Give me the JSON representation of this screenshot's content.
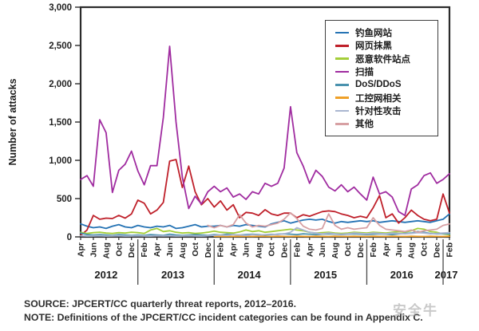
{
  "chart_data": {
    "type": "line",
    "title": "",
    "ylabel": "Number of attacks",
    "ylim": [
      0,
      3000
    ],
    "ytick_step": 500,
    "ytick_labels": [
      "0",
      "500",
      "1,000",
      "1,500",
      "2,000",
      "2,500",
      "3,000"
    ],
    "x_start_month": "Apr 2012",
    "x_end_month": "Feb 2017",
    "xtick_labels": [
      "Apr",
      "Jun",
      "Aug",
      "Oct",
      "Dec",
      "Feb",
      "Apr",
      "Jun",
      "Aug",
      "Oct",
      "Dec",
      "Feb",
      "Apr",
      "Jun",
      "Aug",
      "Oct",
      "Dec",
      "Feb",
      "Apr",
      "Jun",
      "Aug",
      "Oct",
      "Dec",
      "Feb",
      "Apr",
      "Jun",
      "Aug",
      "Oct",
      "Dec",
      "Feb"
    ],
    "years": [
      {
        "label": "2012",
        "start": 0,
        "end": 8
      },
      {
        "label": "2013",
        "start": 9,
        "end": 20
      },
      {
        "label": "2014",
        "start": 21,
        "end": 32
      },
      {
        "label": "2015",
        "start": 33,
        "end": 44
      },
      {
        "label": "2016",
        "start": 45,
        "end": 56
      },
      {
        "label": "2017",
        "start": 57,
        "end": 58
      }
    ],
    "grid": false,
    "legend_position": "upper right",
    "series": [
      {
        "name": "钓鱼网站",
        "color": "#2573b4",
        "values": [
          170,
          140,
          120,
          130,
          110,
          140,
          160,
          130,
          120,
          150,
          130,
          120,
          140,
          130,
          150,
          110,
          120,
          140,
          160,
          130,
          140,
          140,
          150,
          130,
          150,
          140,
          160,
          150,
          140,
          130,
          170,
          190,
          210,
          180,
          200,
          220,
          230,
          220,
          230,
          200,
          180,
          200,
          190,
          200,
          210,
          200,
          210,
          190,
          200,
          210,
          200,
          190,
          200,
          210,
          200,
          190,
          210,
          230,
          300
        ]
      },
      {
        "name": "网页抹黑",
        "color": "#bf202a",
        "values": [
          20,
          90,
          280,
          230,
          245,
          240,
          280,
          245,
          300,
          480,
          440,
          300,
          350,
          450,
          990,
          1010,
          645,
          925,
          590,
          420,
          500,
          390,
          470,
          350,
          420,
          250,
          320,
          310,
          280,
          355,
          300,
          280,
          310,
          310,
          250,
          290,
          270,
          300,
          330,
          340,
          330,
          300,
          280,
          250,
          270,
          250,
          380,
          540,
          250,
          300,
          180,
          250,
          350,
          280,
          230,
          210,
          230,
          560,
          310
        ]
      },
      {
        "name": "恶意软件站点",
        "color": "#a4ce39",
        "values": [
          60,
          45,
          55,
          60,
          50,
          45,
          55,
          50,
          60,
          55,
          45,
          90,
          110,
          70,
          80,
          60,
          50,
          55,
          45,
          50,
          60,
          75,
          60,
          55,
          50,
          65,
          90,
          70,
          80,
          60,
          70,
          80,
          90,
          100,
          90,
          80,
          60,
          50,
          55,
          60,
          50,
          45,
          50,
          60,
          55,
          50,
          60,
          55,
          50,
          60,
          70,
          60,
          80,
          110,
          100,
          70,
          60,
          40,
          30
        ]
      },
      {
        "name": "扫描",
        "color": "#a02ca0",
        "values": [
          750,
          800,
          660,
          1530,
          1360,
          580,
          870,
          950,
          1120,
          860,
          680,
          930,
          930,
          1560,
          2490,
          1500,
          780,
          370,
          530,
          430,
          590,
          660,
          590,
          640,
          520,
          560,
          490,
          590,
          560,
          700,
          660,
          700,
          900,
          1700,
          1100,
          925,
          700,
          870,
          790,
          650,
          600,
          680,
          590,
          650,
          560,
          480,
          780,
          560,
          590,
          520,
          330,
          280,
          625,
          680,
          800,
          835,
          700,
          750,
          825
        ]
      },
      {
        "name": "DoS/DDoS",
        "color": "#4a92ae",
        "values": [
          50,
          30,
          25,
          30,
          25,
          20,
          30,
          25,
          20,
          25,
          20,
          30,
          25,
          20,
          35,
          25,
          20,
          25,
          30,
          25,
          20,
          30,
          25,
          35,
          30,
          25,
          30,
          35,
          30,
          25,
          30,
          35,
          40,
          35,
          30,
          40,
          35,
          30,
          35,
          40,
          35,
          30,
          35,
          40,
          35,
          30,
          35,
          40,
          35,
          30,
          40,
          45,
          50,
          70,
          60,
          45,
          40,
          45,
          40
        ]
      },
      {
        "name": "工控网相关",
        "color": "#efa028",
        "values": [
          null,
          null,
          null,
          null,
          null,
          null,
          null,
          null,
          null,
          null,
          null,
          null,
          null,
          null,
          null,
          null,
          null,
          null,
          null,
          null,
          null,
          8,
          5,
          6,
          5,
          8,
          6,
          5,
          8,
          6,
          5,
          8,
          6,
          5,
          8,
          6,
          5,
          8,
          6,
          5,
          8,
          6,
          5,
          8,
          6,
          5,
          8,
          6,
          5,
          8,
          6,
          5,
          8,
          6,
          5,
          8,
          6,
          5,
          8
        ]
      },
      {
        "name": "针对性攻击",
        "color": "#aab6d0",
        "values": [
          15,
          10,
          12,
          15,
          10,
          12,
          15,
          10,
          12,
          15,
          12,
          10,
          15,
          12,
          15,
          10,
          12,
          15,
          12,
          10,
          15,
          20,
          25,
          20,
          30,
          25,
          20,
          30,
          25,
          30,
          35,
          30,
          40,
          60,
          120,
          90,
          60,
          50,
          40,
          50,
          40,
          35,
          40,
          50,
          45,
          40,
          50,
          45,
          40,
          50,
          45,
          40,
          45,
          55,
          50,
          40,
          45,
          50,
          55
        ]
      },
      {
        "name": "其他",
        "color": "#d7a0a3",
        "values": [
          null,
          null,
          null,
          null,
          null,
          null,
          null,
          null,
          null,
          null,
          null,
          null,
          null,
          null,
          null,
          null,
          null,
          null,
          null,
          null,
          150,
          120,
          150,
          130,
          160,
          290,
          180,
          130,
          150,
          140,
          160,
          180,
          230,
          315,
          240,
          140,
          100,
          90,
          110,
          300,
          150,
          100,
          120,
          100,
          110,
          120,
          250,
          150,
          100,
          90,
          80,
          70,
          90,
          60,
          80,
          90,
          100,
          150,
          170
        ]
      }
    ]
  },
  "footer": {
    "source": "SOURCE: JPCERT/CC quarterly threat reports, 2012–2016.",
    "note": "NOTE: Definitions of the JPCERT/CC incident categories can be found in Appendix C."
  },
  "watermark": "安全牛"
}
